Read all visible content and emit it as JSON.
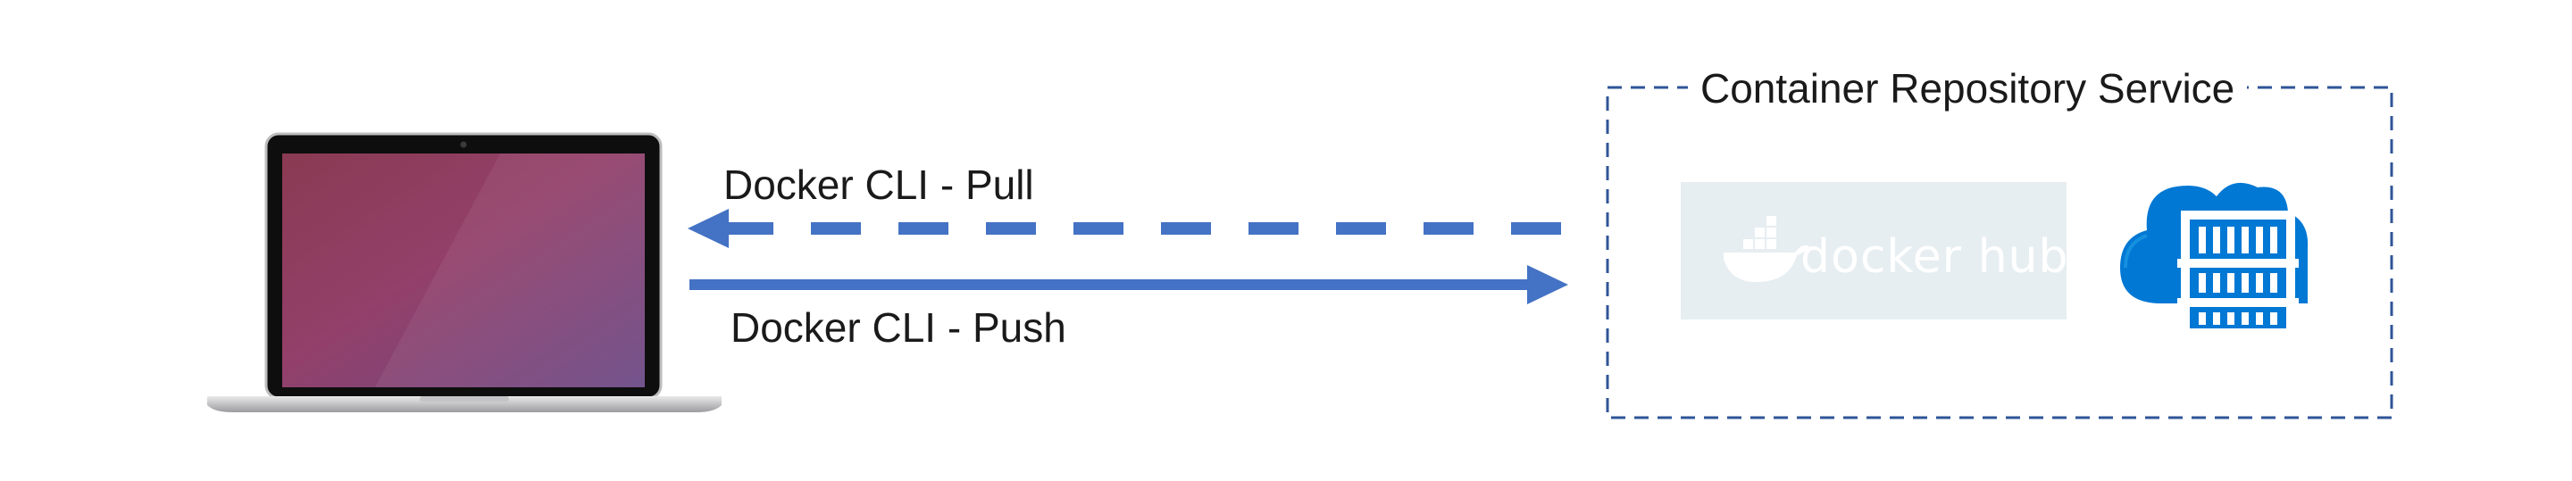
{
  "diagram": {
    "repository_title": "Container Repository Service",
    "pull_label": "Docker CLI - Pull",
    "push_label": "Docker CLI - Push",
    "docker_hub_logo_text": "docker hub",
    "icons": [
      "laptop-icon",
      "docker-hub-logo",
      "azure-container-registry-icon"
    ],
    "colors": {
      "arrow": "#4472c4",
      "dashed_border": "#2f5597",
      "docker_hub_bg": "#e7eef1",
      "acr_blue": "#0078d4"
    }
  }
}
